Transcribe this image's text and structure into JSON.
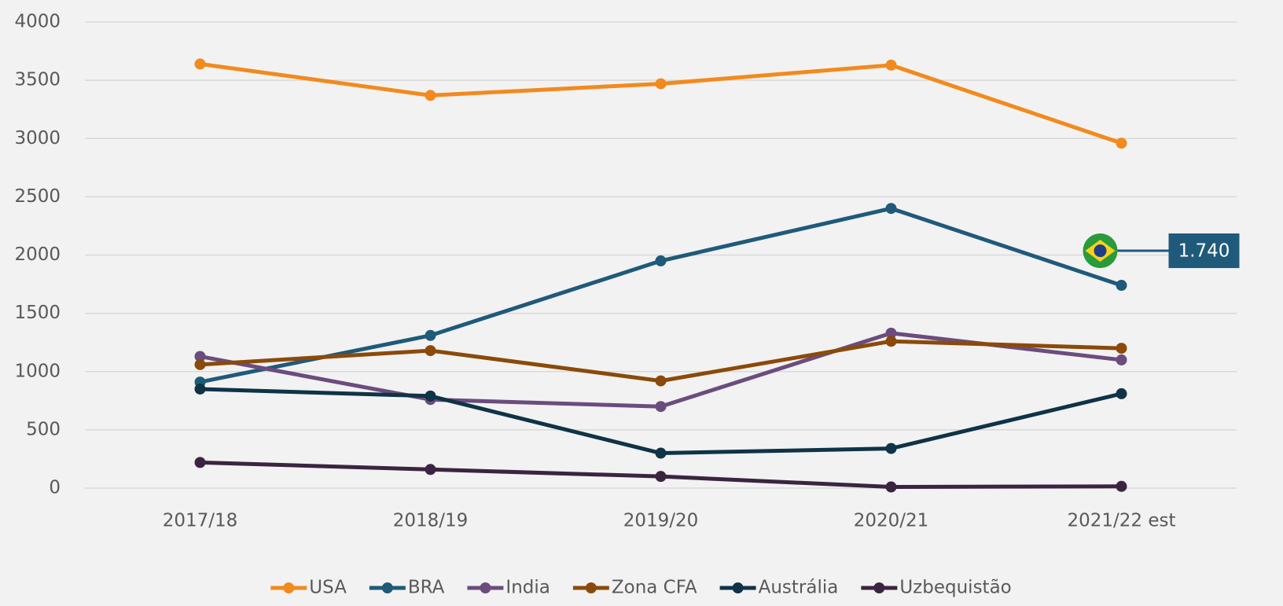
{
  "chart_data": {
    "type": "line",
    "categories": [
      "2017/18",
      "2018/19",
      "2019/20",
      "2020/21",
      "2021/22 est"
    ],
    "series": [
      {
        "name": "USA",
        "color": "#f28a1e",
        "values": [
          3640,
          3370,
          3470,
          3630,
          2960
        ]
      },
      {
        "name": "BRA",
        "color": "#1f5a7a",
        "values": [
          910,
          1310,
          1950,
          2400,
          1740
        ],
        "value_labels": [
          null,
          null,
          null,
          null,
          "1.740"
        ]
      },
      {
        "name": "India",
        "color": "#6b4c7e",
        "values": [
          1130,
          760,
          700,
          1330,
          1100
        ]
      },
      {
        "name": "Zona CFA",
        "color": "#8b4a0a",
        "values": [
          1060,
          1180,
          920,
          1260,
          1200
        ]
      },
      {
        "name": "Austrália",
        "color": "#0f3347",
        "values": [
          850,
          790,
          300,
          340,
          810
        ]
      },
      {
        "name": "Uzbequistão",
        "color": "#3b2440",
        "values": [
          220,
          160,
          100,
          10,
          15
        ]
      }
    ],
    "ylim": [
      0,
      4000
    ],
    "yticks": [
      0,
      500,
      1000,
      1500,
      2000,
      2500,
      3000,
      3500,
      4000
    ],
    "grid": true,
    "legend": "bottom"
  }
}
